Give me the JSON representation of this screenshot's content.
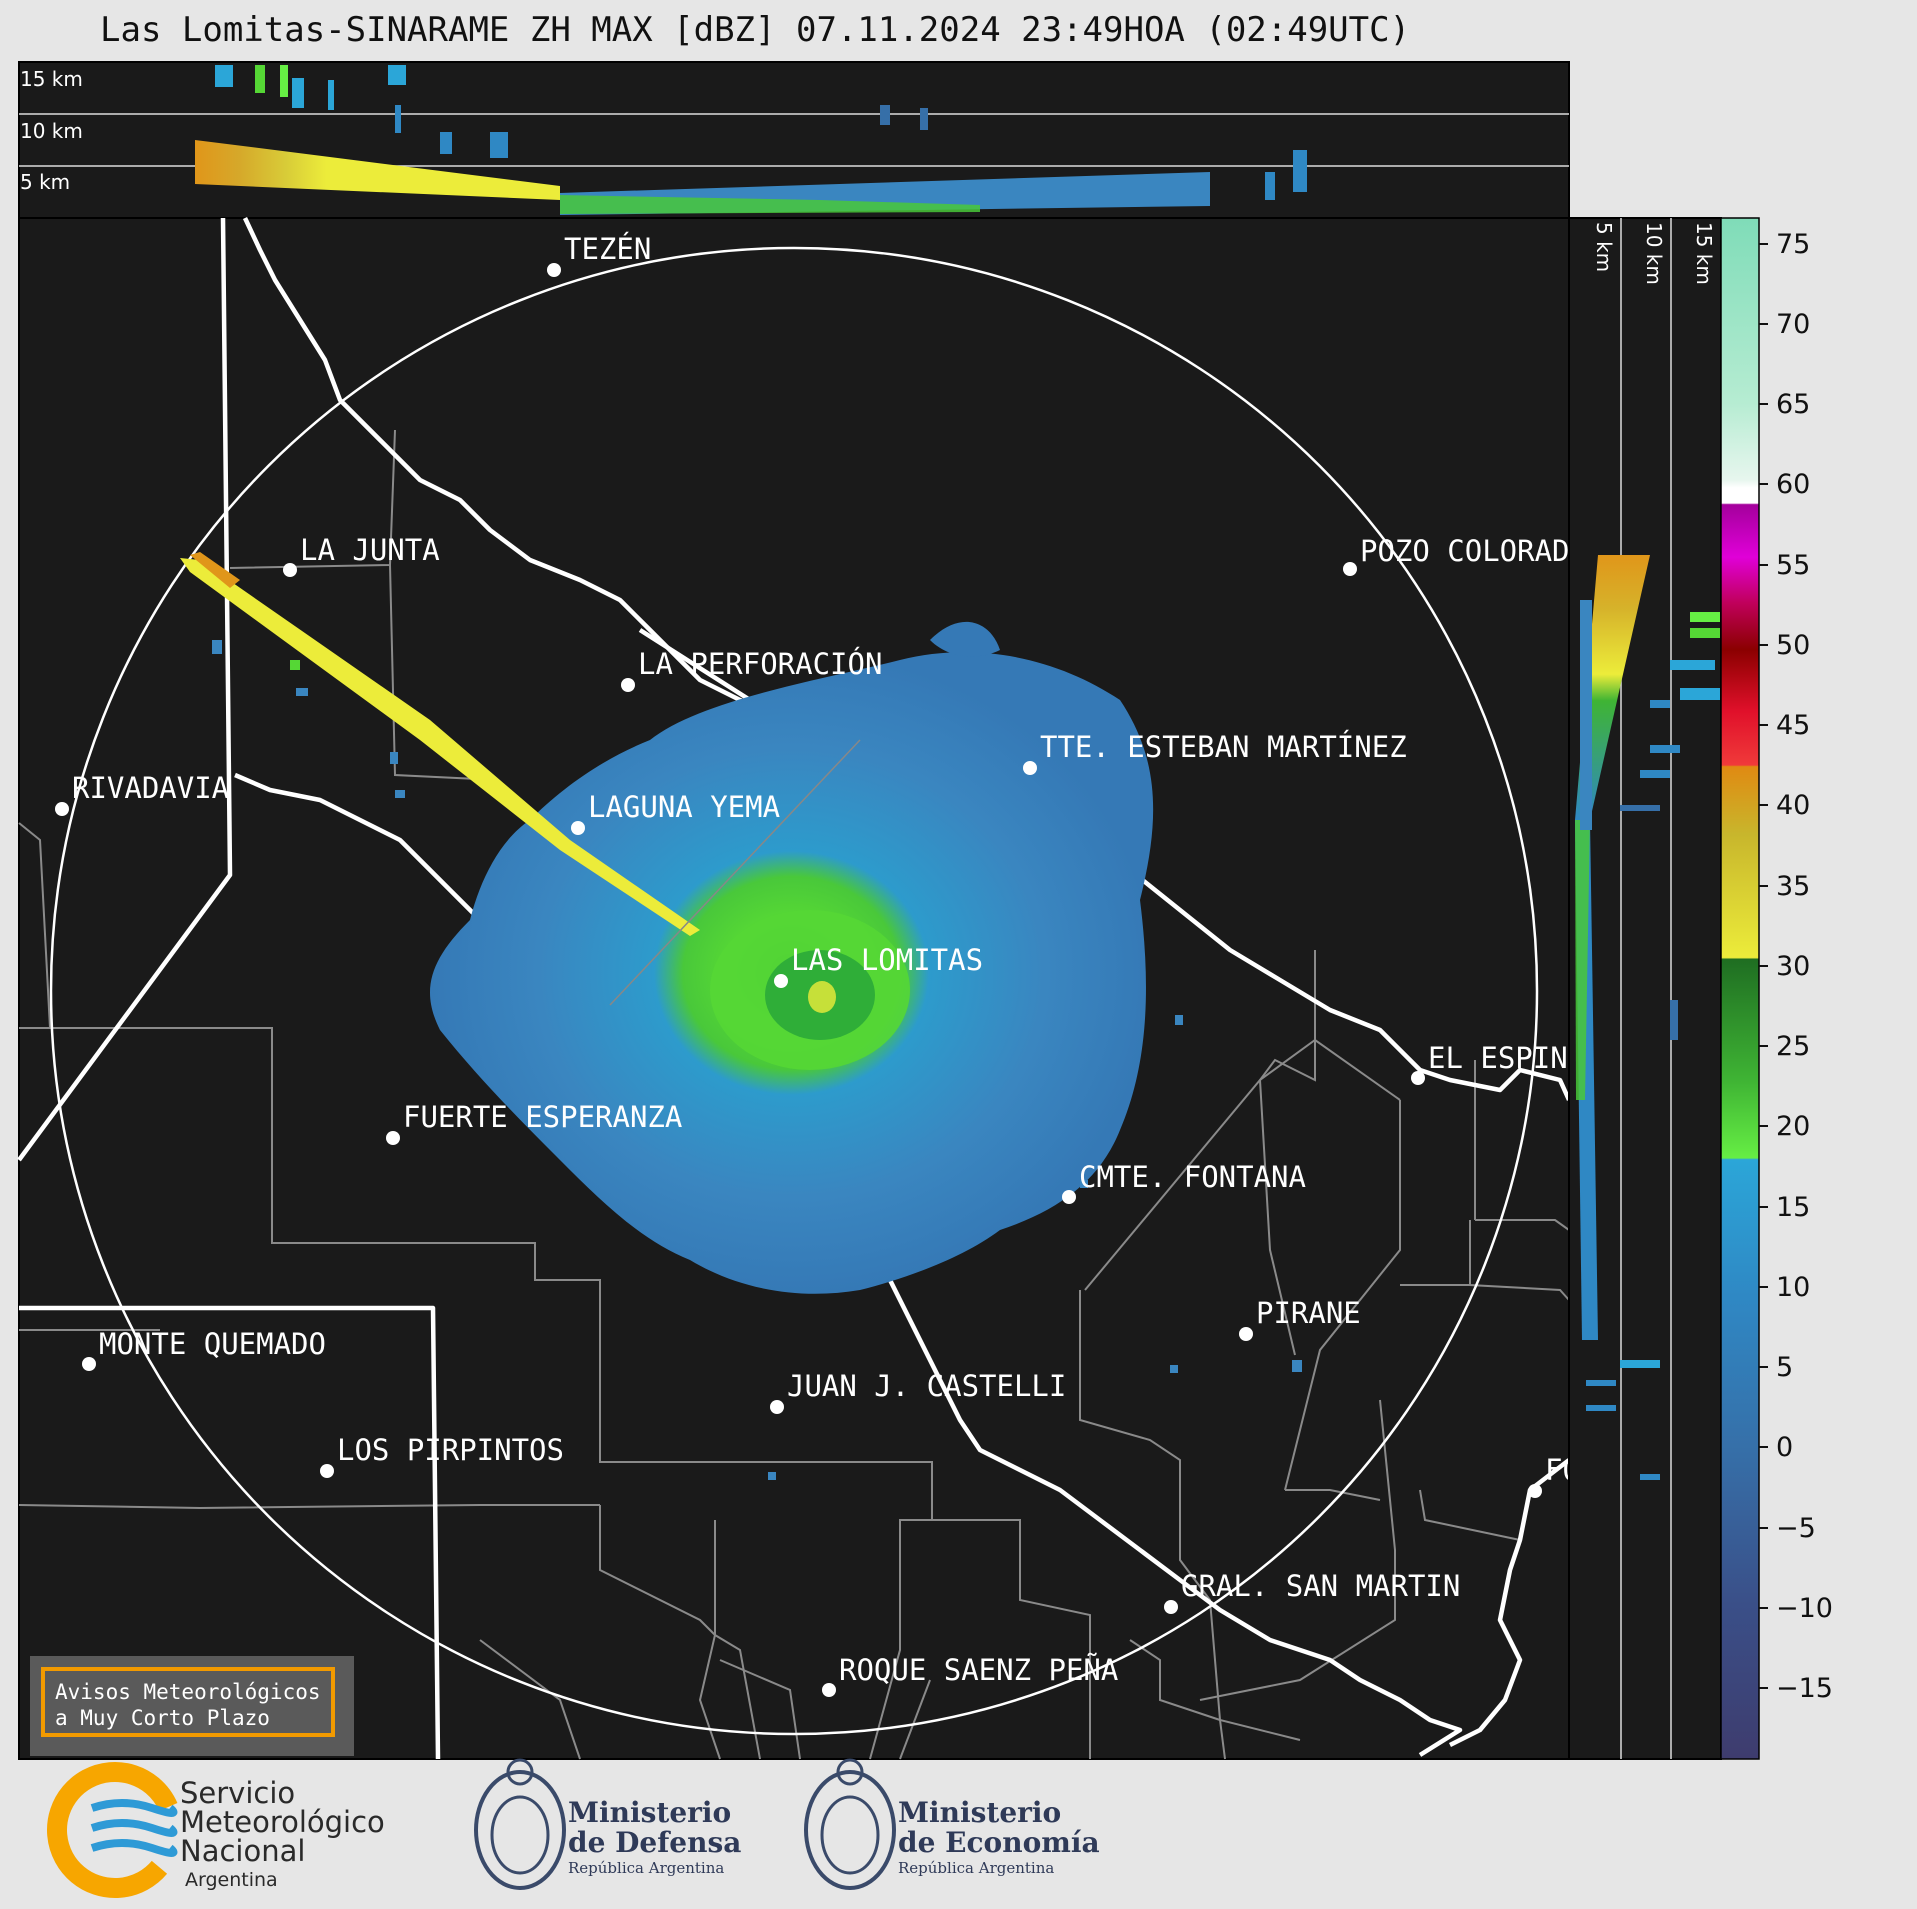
{
  "title": "Las Lomitas-SINARAME ZH MAX [dBZ] 07.11.2024 23:49HOA (02:49UTC)",
  "top_panel": {
    "height_labels": [
      "15 km",
      "10 km",
      "5 km"
    ]
  },
  "side_panel": {
    "height_labels": [
      "5 km",
      "10 km",
      "15 km"
    ]
  },
  "colorbar": {
    "unit": "dBZ",
    "ticks": [
      "75",
      "70",
      "65",
      "60",
      "55",
      "50",
      "45",
      "40",
      "35",
      "30",
      "25",
      "20",
      "15",
      "10",
      "5",
      "0",
      "−5",
      "−10",
      "−15"
    ],
    "range": [
      -20,
      77
    ]
  },
  "places": [
    {
      "name": "TEZÉN"
    },
    {
      "name": "LA JUNTA"
    },
    {
      "name": "POZO COLORAD"
    },
    {
      "name": "LA PERFORACIÓN"
    },
    {
      "name": "TTE. ESTEBAN MARTÍNEZ"
    },
    {
      "name": "RIVADAVIA"
    },
    {
      "name": "LAGUNA YEMA"
    },
    {
      "name": "LAS LOMITAS"
    },
    {
      "name": "EL ESPIN"
    },
    {
      "name": "FUERTE ESPERANZA"
    },
    {
      "name": "CMTE. FONTANA"
    },
    {
      "name": "PIRANE"
    },
    {
      "name": "MONTE QUEMADO"
    },
    {
      "name": "JUAN J. CASTELLI"
    },
    {
      "name": "LOS PIRPINTOS"
    },
    {
      "name": "GRAL. SAN MARTIN"
    },
    {
      "name": "ROQUE SAENZ PEÑA"
    },
    {
      "name": "FO"
    }
  ],
  "warning_box": {
    "line1": "Avisos Meteorológicos",
    "line2": "a Muy Corto Plazo"
  },
  "logos": {
    "smn": {
      "line1": "Servicio",
      "line2": "Meteorológico",
      "line3": "Nacional",
      "line4": "Argentina",
      "icon": "smn-logo-icon"
    },
    "defensa": {
      "line1": "Ministerio",
      "line2": "de Defensa",
      "line3": "República Argentina",
      "icon": "coat-of-arms-icon"
    },
    "economia": {
      "line1": "Ministerio",
      "line2": "de Economía",
      "line3": "República Argentina",
      "icon": "coat-of-arms-icon"
    }
  },
  "colors": {
    "map_bg": "#1a1a1a",
    "accent_orange": "#f29a00",
    "page_bg": "#e6e6e6"
  }
}
